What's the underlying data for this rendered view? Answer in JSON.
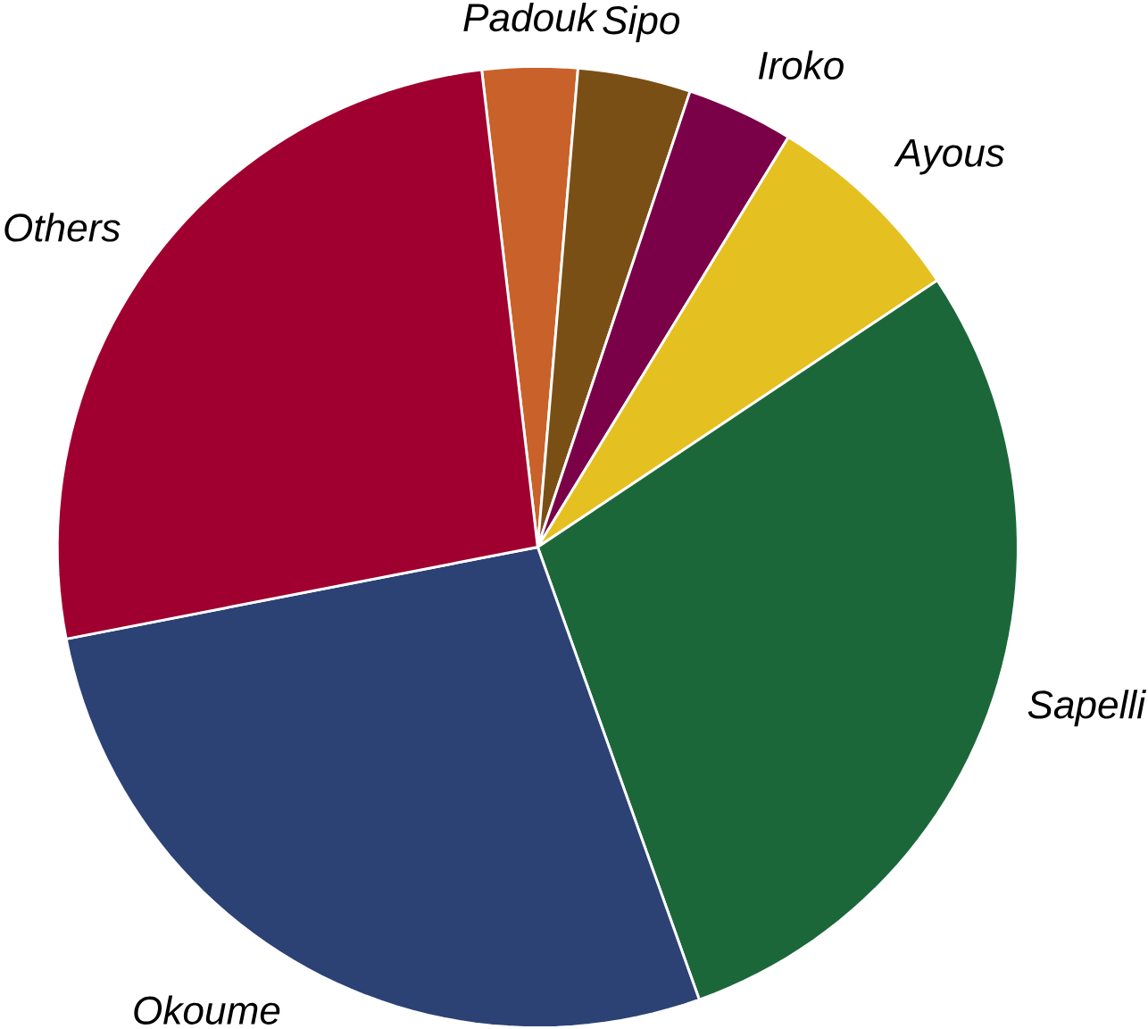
{
  "chart_data": {
    "type": "pie",
    "categories": [
      "Padouk",
      "Sipo",
      "Iroko",
      "Ayous",
      "Sapelli",
      "Okoume",
      "Others"
    ],
    "values": [
      3.2,
      3.8,
      3.6,
      6.9,
      28.9,
      27.4,
      26.2
    ],
    "colors": [
      "#c8622a",
      "#7a4f16",
      "#7a0048",
      "#e5c021",
      "#1c673a",
      "#2c4275",
      "#a00030"
    ]
  }
}
